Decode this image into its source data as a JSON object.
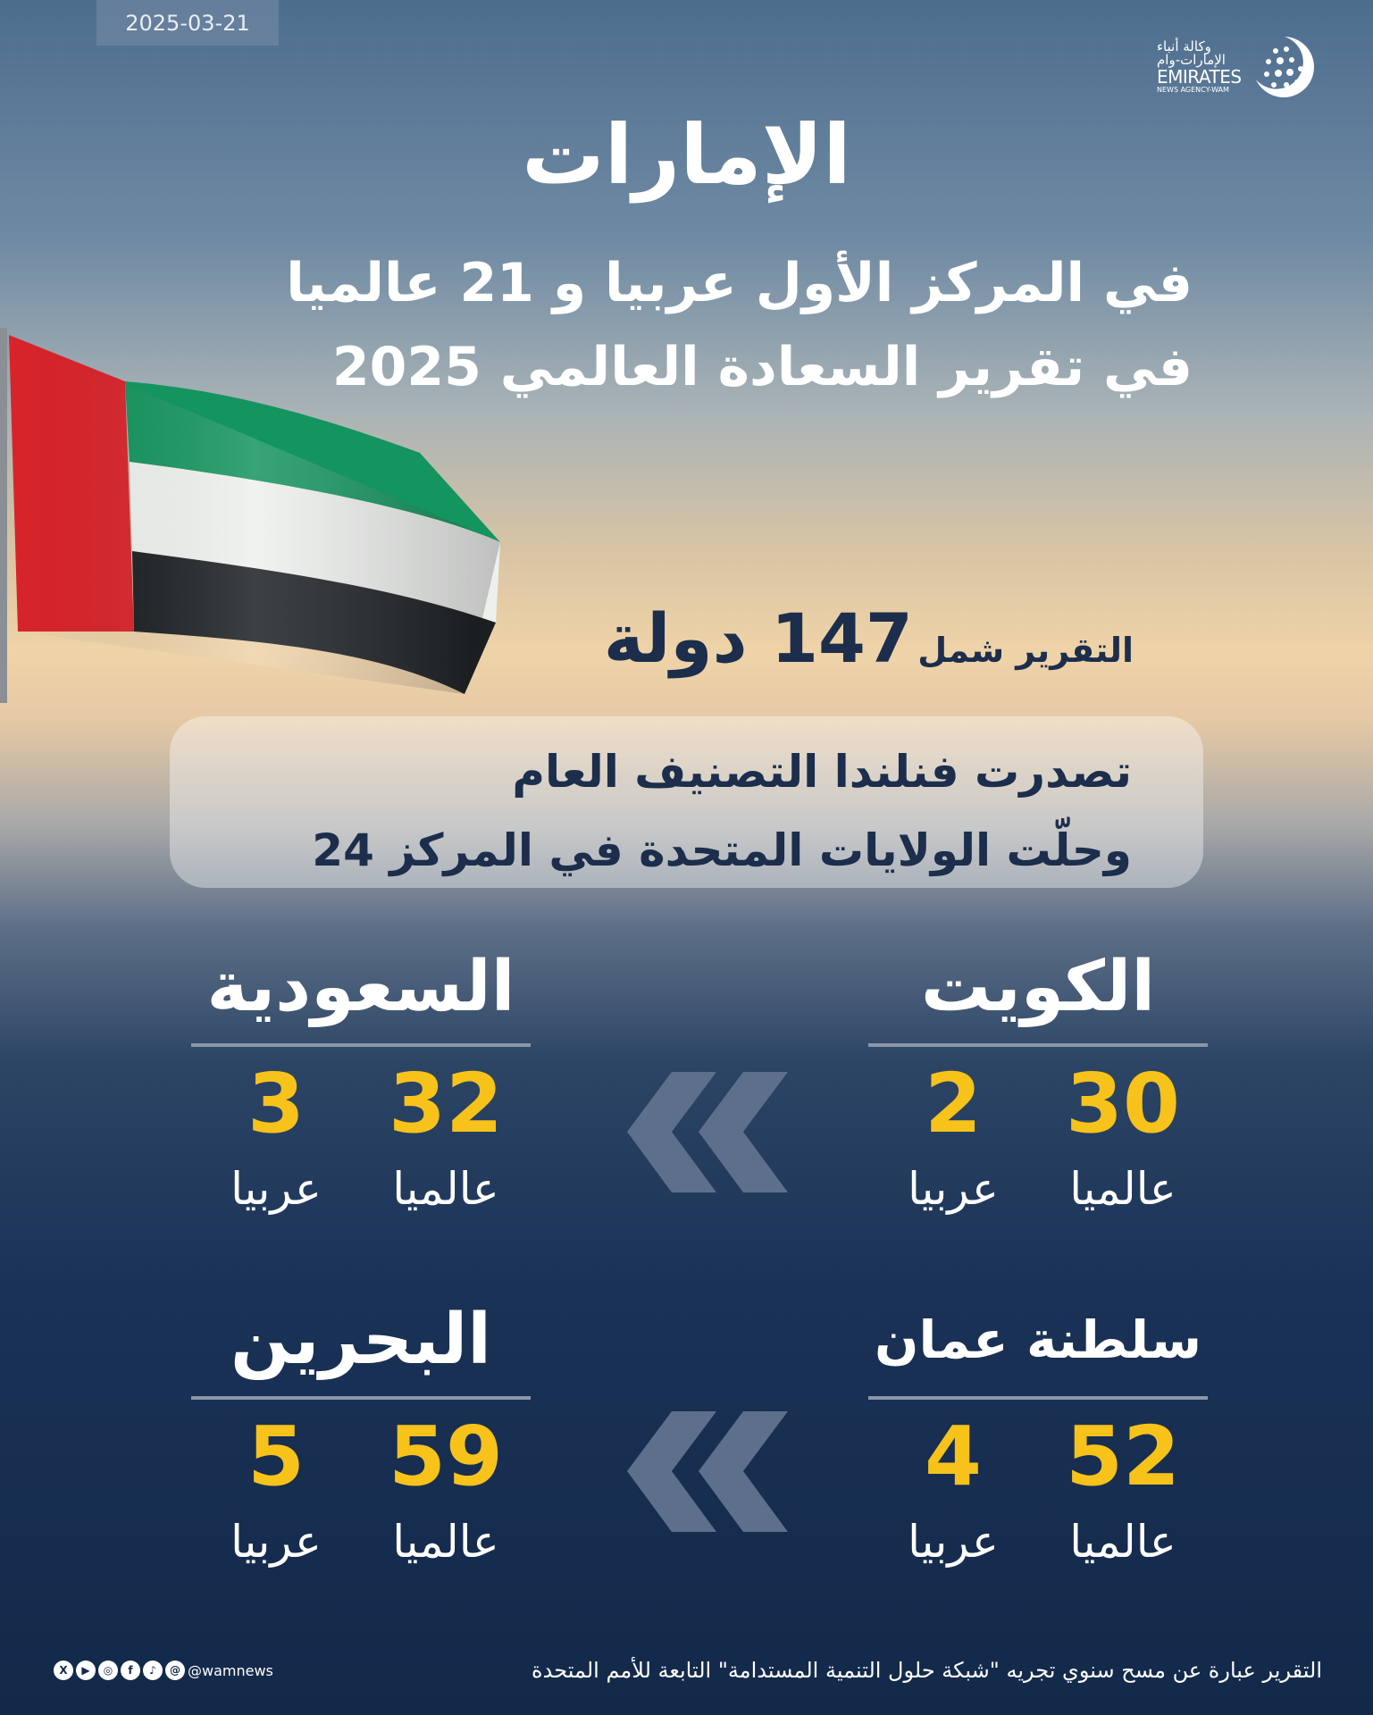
{
  "date": "2025-03-21",
  "logo": {
    "arabic_line1": "وكالة أنباء",
    "arabic_line2": "الإمارات-وام",
    "english": "EMIRATES",
    "english_sub": "NEWS AGENCY-WAM"
  },
  "headline": {
    "title": "الإمارات",
    "line1": "في المركز الأول عربيا و 21 عالميا",
    "line2": "في تقرير السعادة العالمي  2025"
  },
  "coverage": {
    "prefix": "التقرير شمل",
    "count": "147 دولة"
  },
  "highlight": {
    "line1": "تصدرت فنلندا التصنيف العام",
    "line2": "وحلّت الولايات المتحدة في المركز 24"
  },
  "countries": [
    {
      "name": "الكويت",
      "global": "30",
      "arab": "2",
      "global_label": "عالميا",
      "arab_label": "عربيا"
    },
    {
      "name": "السعودية",
      "global": "32",
      "arab": "3",
      "global_label": "عالميا",
      "arab_label": "عربيا"
    },
    {
      "name": "سلطنة عمان",
      "global": "52",
      "arab": "4",
      "global_label": "عالميا",
      "arab_label": "عربيا"
    },
    {
      "name": "البحرين",
      "global": "59",
      "arab": "5",
      "global_label": "عالميا",
      "arab_label": "عربيا"
    }
  ],
  "footer": {
    "note": "التقرير عبارة عن مسح سنوي تجريه \"شبكة حلول التنمية المستدامة\" التابعة للأمم المتحدة",
    "handle": "@wamnews",
    "social_icons": [
      "x-icon",
      "youtube-icon",
      "instagram-icon",
      "facebook-icon",
      "tiktok-icon",
      "threads-icon"
    ]
  },
  "colors": {
    "accent": "#f7c21a",
    "navy": "#13294a"
  }
}
